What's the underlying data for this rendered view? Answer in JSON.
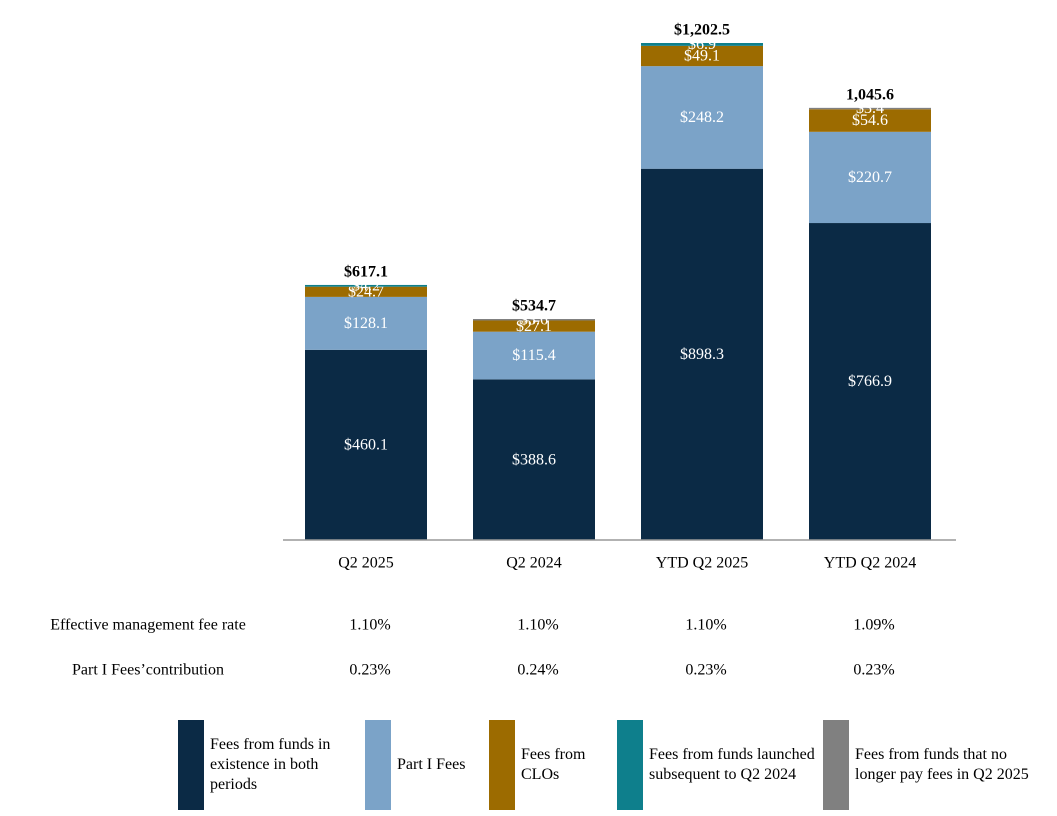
{
  "chart_data": {
    "type": "stacked_bar",
    "categories": [
      "Q2 2025",
      "Q2 2024",
      "YTD Q2 2025",
      "YTD Q2 2024"
    ],
    "series": [
      {
        "name": "Fees from funds in existence in both periods",
        "color": "#0b2a45",
        "values": [
          460.1,
          388.6,
          898.3,
          766.9
        ],
        "value_labels": [
          "$460.1",
          "$388.6",
          "$898.3",
          "$766.9"
        ]
      },
      {
        "name": "Part I Fees",
        "color": "#7ba3c8",
        "values": [
          128.1,
          115.4,
          248.2,
          220.7
        ],
        "value_labels": [
          "$128.1",
          "$115.4",
          "$248.2",
          "$220.7"
        ]
      },
      {
        "name": "Fees from CLOs",
        "color": "#9c6b00",
        "values": [
          24.7,
          27.1,
          49.1,
          54.6
        ],
        "value_labels": [
          "$24.7",
          "$27.1",
          "$49.1",
          "$54.6"
        ]
      },
      {
        "name": "Fees from funds launched subsequent to Q2 2024",
        "color": "#0e7f8c",
        "values": [
          4.2,
          null,
          6.9,
          null
        ],
        "value_labels": [
          "$4.2",
          null,
          "$6.9",
          null
        ]
      },
      {
        "name": "Fees from funds that no longer pay fees in Q2 2025",
        "color": "#808080",
        "values": [
          null,
          3.6,
          null,
          3.4
        ],
        "value_labels": [
          null,
          "$3.6",
          null,
          "$3.4"
        ]
      }
    ],
    "totals": [
      617.1,
      534.7,
      1202.5,
      1045.6
    ],
    "total_labels": [
      "$617.1",
      "$534.7",
      "$1,202.5",
      "1,045.6"
    ],
    "table": {
      "rows": [
        {
          "label": "Effective management fee rate",
          "values": [
            "1.10%",
            "1.10%",
            "1.10%",
            "1.09%"
          ]
        },
        {
          "label": "Part I Fees’contribution",
          "values": [
            "0.23%",
            "0.24%",
            "0.23%",
            "0.23%"
          ]
        }
      ]
    }
  }
}
